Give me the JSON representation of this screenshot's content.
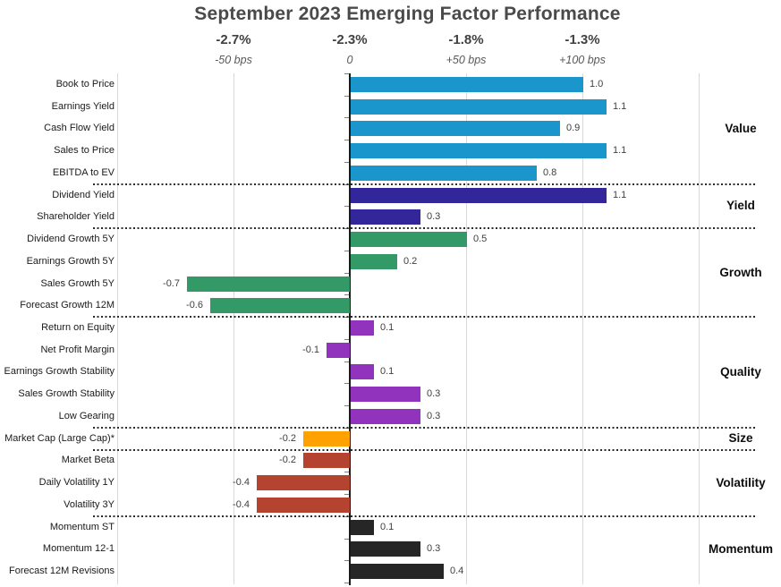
{
  "title": "September 2023 Emerging Factor Performance",
  "top_axis": {
    "pct_row": [
      {
        "text": "-2.7%",
        "at": -0.5
      },
      {
        "text": "-2.3%",
        "at": 0
      },
      {
        "text": "-1.8%",
        "at": 0.5
      },
      {
        "text": "-1.3%",
        "at": 1.0
      }
    ],
    "bps_row": [
      {
        "text": "-50 bps",
        "at": -0.5
      },
      {
        "text": "0",
        "at": 0
      },
      {
        "text": "+50 bps",
        "at": 0.5
      },
      {
        "text": "+100 bps",
        "at": 1.0
      }
    ]
  },
  "chart_data": {
    "type": "bar",
    "orientation": "horizontal",
    "title": "September 2023 Emerging Factor Performance",
    "value_scale": "1.0 = +100 bps",
    "xlim": [
      -1.0,
      1.5
    ],
    "gridlines_at": [
      -1.0,
      -0.5,
      0.5,
      1.0,
      1.5
    ],
    "zero_axis": 0,
    "legend_position": "right-group-labels",
    "groups": [
      {
        "name": "Value",
        "color": "#1b96cc",
        "factors": [
          {
            "label": "Book to Price",
            "value": 1.0
          },
          {
            "label": "Earnings Yield",
            "value": 1.1
          },
          {
            "label": "Cash Flow Yield",
            "value": 0.9
          },
          {
            "label": "Sales to Price",
            "value": 1.1
          },
          {
            "label": "EBITDA to EV",
            "value": 0.8
          }
        ]
      },
      {
        "name": "Yield",
        "color": "#33269b",
        "factors": [
          {
            "label": "Dividend Yield",
            "value": 1.1
          },
          {
            "label": "Shareholder Yield",
            "value": 0.3
          }
        ]
      },
      {
        "name": "Growth",
        "color": "#339966",
        "factors": [
          {
            "label": "Dividend Growth 5Y",
            "value": 0.5
          },
          {
            "label": "Earnings Growth 5Y",
            "value": 0.2
          },
          {
            "label": "Sales Growth 5Y",
            "value": -0.7
          },
          {
            "label": "Forecast Growth 12M",
            "value": -0.6
          }
        ]
      },
      {
        "name": "Quality",
        "color": "#9233be",
        "factors": [
          {
            "label": "Return on Equity",
            "value": 0.1
          },
          {
            "label": "Net Profit Margin",
            "value": -0.1
          },
          {
            "label": "Earnings Growth Stability",
            "value": 0.1
          },
          {
            "label": "Sales Growth Stability",
            "value": 0.3
          },
          {
            "label": "Low Gearing",
            "value": 0.3
          }
        ]
      },
      {
        "name": "Size",
        "color": "#ffa200",
        "factors": [
          {
            "label": "Market Cap (Large Cap)*",
            "value": -0.2
          }
        ]
      },
      {
        "name": "Volatility",
        "color": "#b4432f",
        "factors": [
          {
            "label": "Market Beta",
            "value": -0.2
          },
          {
            "label": "Daily Volatility 1Y",
            "value": -0.4
          },
          {
            "label": "Volatility 3Y",
            "value": -0.4
          }
        ]
      },
      {
        "name": "Momentum",
        "color": "#262626",
        "factors": [
          {
            "label": "Momentum ST",
            "value": 0.1
          },
          {
            "label": "Momentum 12-1",
            "value": 0.3
          },
          {
            "label": "Forecast 12M Revisions",
            "value": 0.4
          }
        ]
      }
    ]
  }
}
